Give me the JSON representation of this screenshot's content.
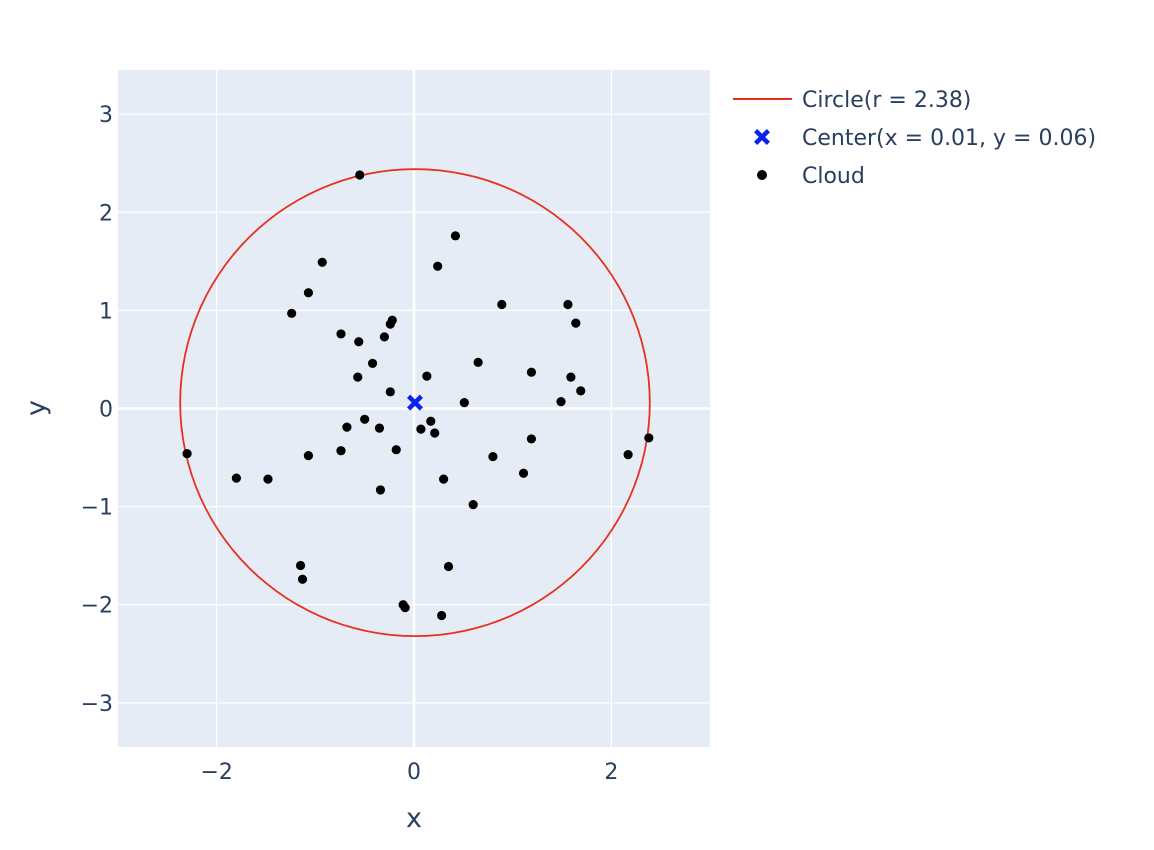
{
  "chart_data": {
    "type": "scatter",
    "title": "",
    "xlabel": "x",
    "ylabel": "y",
    "xlim": [
      -3,
      3
    ],
    "ylim": [
      -3.45,
      3.45
    ],
    "xticks": [
      -2,
      0,
      2
    ],
    "xtick_labels": [
      "−2",
      "0",
      "2"
    ],
    "yticks": [
      -3,
      -2,
      -1,
      0,
      1,
      2,
      3
    ],
    "ytick_labels": [
      "−3",
      "−2",
      "−1",
      "0",
      "1",
      "2",
      "3"
    ],
    "grid": true,
    "legend_position": "right",
    "colors": {
      "plot_background": "#e5ecf6",
      "grid": "#ffffff",
      "circle": "#e8301c",
      "center": "#0a22ee",
      "cloud": "#000000",
      "text": "#2a3f5f"
    },
    "series": [
      {
        "name": "Circle(r = 2.38)",
        "kind": "line",
        "center": [
          0.01,
          0.06
        ],
        "radius": 2.38
      },
      {
        "name": "Center(x = 0.01, y = 0.06)",
        "kind": "marker-x",
        "x": [
          0.01
        ],
        "y": [
          0.06
        ]
      },
      {
        "name": "Cloud",
        "kind": "markers",
        "x": [
          -0.55,
          0.42,
          0.24,
          -0.93,
          -1.07,
          -1.24,
          0.89,
          1.56,
          1.64,
          -0.74,
          -0.22,
          -0.24,
          -0.3,
          -0.56,
          -0.42,
          0.65,
          1.19,
          0.13,
          -0.57,
          -0.24,
          1.59,
          1.69,
          0.51,
          1.49,
          -0.5,
          -0.68,
          -0.35,
          0.17,
          0.07,
          0.21,
          1.19,
          -2.3,
          -0.74,
          -0.18,
          -1.07,
          0.8,
          1.11,
          2.17,
          2.38,
          -1.8,
          -1.48,
          0.3,
          -0.34,
          0.6,
          -1.15,
          -1.13,
          0.35,
          -0.11,
          -0.09,
          0.28
        ],
        "y": [
          2.38,
          1.76,
          1.45,
          1.49,
          1.18,
          0.97,
          1.06,
          1.06,
          0.87,
          0.76,
          0.9,
          0.86,
          0.73,
          0.68,
          0.46,
          0.47,
          0.37,
          0.33,
          0.32,
          0.17,
          0.32,
          0.18,
          0.06,
          0.07,
          -0.11,
          -0.19,
          -0.2,
          -0.13,
          -0.21,
          -0.25,
          -0.31,
          -0.46,
          -0.43,
          -0.42,
          -0.48,
          -0.49,
          -0.66,
          -0.47,
          -0.3,
          -0.71,
          -0.72,
          -0.72,
          -0.83,
          -0.98,
          -1.6,
          -1.74,
          -1.61,
          -2.0,
          -2.03,
          -2.11
        ]
      }
    ]
  }
}
